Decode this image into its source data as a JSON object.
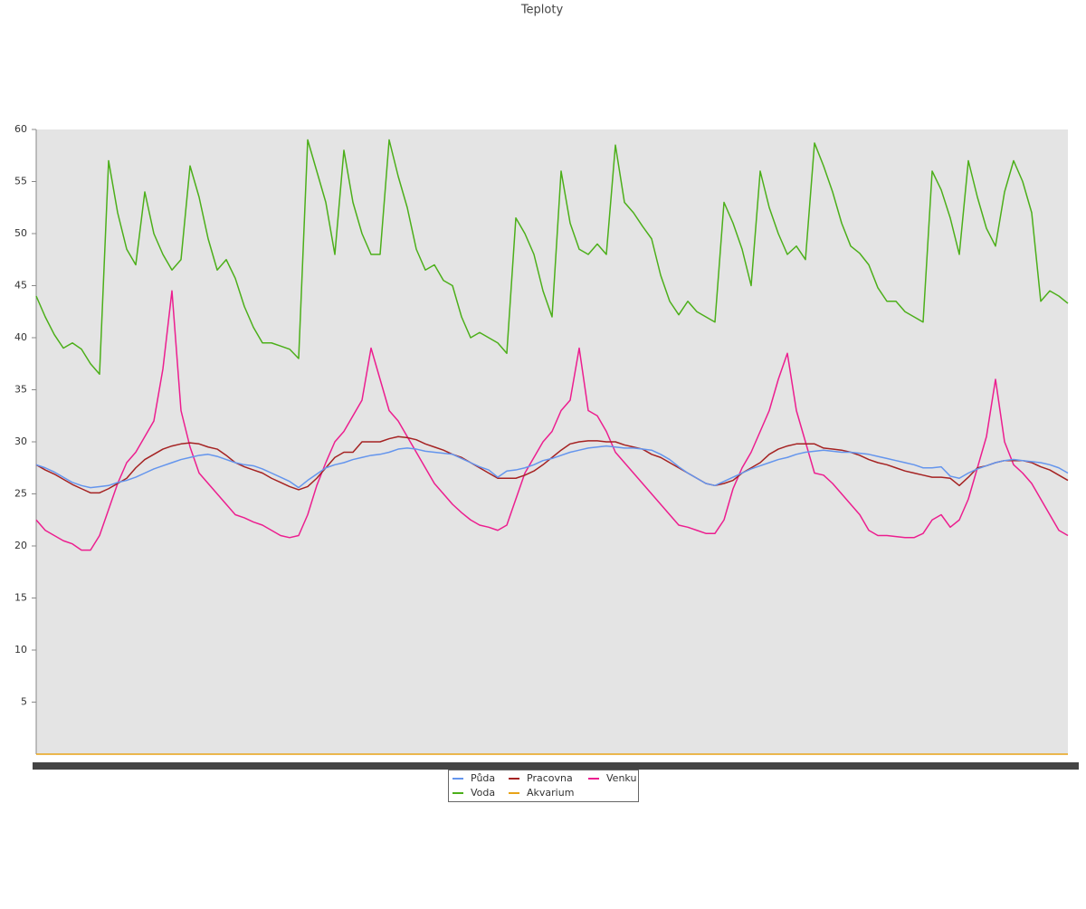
{
  "chart_data": {
    "type": "line",
    "title": "Teploty",
    "ylim": [
      0,
      60
    ],
    "yticks": [
      5,
      10,
      15,
      20,
      25,
      30,
      35,
      40,
      45,
      50,
      55,
      60
    ],
    "series": [
      {
        "name": "Půda",
        "color": "#6495ed",
        "values": [
          27.8,
          27.5,
          27.1,
          26.6,
          26.1,
          25.8,
          25.6,
          25.7,
          25.8,
          26.1,
          26.3,
          26.6,
          27.0,
          27.4,
          27.7,
          28.0,
          28.3,
          28.5,
          28.7,
          28.8,
          28.6,
          28.3,
          28.0,
          27.8,
          27.7,
          27.4,
          27.0,
          26.6,
          26.2,
          25.6,
          26.3,
          26.9,
          27.5,
          27.8,
          28.0,
          28.3,
          28.5,
          28.7,
          28.8,
          29.0,
          29.3,
          29.4,
          29.3,
          29.1,
          29.0,
          28.9,
          28.8,
          28.4,
          28.0,
          27.6,
          27.3,
          26.6,
          27.2,
          27.3,
          27.5,
          27.8,
          28.2,
          28.4,
          28.7,
          29.0,
          29.2,
          29.4,
          29.5,
          29.6,
          29.5,
          29.4,
          29.4,
          29.3,
          29.2,
          28.8,
          28.3,
          27.6,
          27.0,
          26.5,
          26.0,
          25.8,
          26.2,
          26.6,
          27.0,
          27.4,
          27.7,
          28.0,
          28.3,
          28.5,
          28.8,
          29.0,
          29.1,
          29.2,
          29.1,
          29.0,
          29.0,
          28.9,
          28.8,
          28.6,
          28.4,
          28.2,
          28.0,
          27.8,
          27.5,
          27.5,
          27.6,
          26.7,
          26.5,
          27.0,
          27.4,
          27.7,
          28.0,
          28.2,
          28.3,
          28.2,
          28.1,
          28.0,
          27.8,
          27.5,
          27.0
        ]
      },
      {
        "name": "Voda",
        "color": "#4caf1a",
        "values": [
          44.0,
          42.0,
          40.3,
          39.0,
          39.5,
          38.9,
          37.5,
          36.5,
          57.0,
          52.0,
          48.5,
          47.0,
          54.0,
          50.0,
          48.0,
          46.5,
          47.5,
          56.5,
          53.5,
          49.5,
          46.5,
          47.5,
          45.7,
          43.0,
          41.0,
          39.5,
          39.5,
          39.2,
          38.9,
          38.0,
          59.0,
          56.0,
          53.0,
          48.0,
          58.0,
          53.0,
          50.0,
          48.0,
          48.0,
          59.0,
          55.5,
          52.5,
          48.5,
          46.5,
          47.0,
          45.5,
          45.0,
          42.0,
          40.0,
          40.5,
          40.0,
          39.5,
          38.5,
          51.5,
          50.0,
          48.0,
          44.5,
          42.0,
          56.0,
          51.0,
          48.5,
          48.0,
          49.0,
          48.0,
          58.5,
          53.0,
          52.0,
          50.7,
          49.5,
          46.0,
          43.5,
          42.2,
          43.5,
          42.5,
          42.0,
          41.5,
          53.0,
          51.0,
          48.5,
          45.0,
          56.0,
          52.5,
          50.0,
          48.0,
          48.8,
          47.5,
          58.7,
          56.5,
          54.0,
          51.0,
          48.8,
          48.1,
          47.0,
          44.8,
          43.5,
          43.5,
          42.5,
          42.0,
          41.5,
          56.0,
          54.2,
          51.5,
          48.0,
          57.0,
          53.5,
          50.5,
          48.8,
          54.0,
          57.0,
          55.0,
          52.0,
          43.5,
          44.5,
          44.0,
          43.3
        ]
      },
      {
        "name": "Pracovna",
        "color": "#a52222",
        "values": [
          27.8,
          27.3,
          26.9,
          26.4,
          25.9,
          25.5,
          25.1,
          25.1,
          25.5,
          26.0,
          26.5,
          27.5,
          28.3,
          28.8,
          29.3,
          29.6,
          29.8,
          29.9,
          29.8,
          29.5,
          29.3,
          28.7,
          28.0,
          27.6,
          27.3,
          27.0,
          26.5,
          26.1,
          25.7,
          25.4,
          25.7,
          26.5,
          27.5,
          28.5,
          29.0,
          29.0,
          30.0,
          30.0,
          30.0,
          30.3,
          30.5,
          30.4,
          30.2,
          29.8,
          29.5,
          29.2,
          28.8,
          28.5,
          28.0,
          27.5,
          27.0,
          26.5,
          26.5,
          26.5,
          26.8,
          27.2,
          27.8,
          28.5,
          29.2,
          29.8,
          30.0,
          30.1,
          30.1,
          30.0,
          30.0,
          29.7,
          29.5,
          29.3,
          28.8,
          28.5,
          28.0,
          27.5,
          27.0,
          26.5,
          26.0,
          25.8,
          26.0,
          26.3,
          27.0,
          27.5,
          28.0,
          28.8,
          29.3,
          29.6,
          29.8,
          29.8,
          29.8,
          29.4,
          29.3,
          29.2,
          29.0,
          28.7,
          28.3,
          28.0,
          27.8,
          27.5,
          27.2,
          27.0,
          26.8,
          26.6,
          26.6,
          26.5,
          25.8,
          26.6,
          27.5,
          27.7,
          28.0,
          28.2,
          28.2,
          28.2,
          28.0,
          27.6,
          27.3,
          26.8,
          26.3
        ]
      },
      {
        "name": "Akvarium",
        "color": "#e8a317",
        "values": [
          0,
          0,
          0,
          0,
          0,
          0,
          0,
          0,
          0,
          0,
          0,
          0,
          0,
          0,
          0,
          0,
          0,
          0,
          0,
          0,
          0,
          0,
          0,
          0,
          0,
          0,
          0,
          0,
          0,
          0,
          0,
          0,
          0,
          0,
          0,
          0,
          0,
          0,
          0,
          0,
          0,
          0,
          0,
          0,
          0,
          0,
          0,
          0,
          0,
          0,
          0,
          0,
          0,
          0,
          0,
          0,
          0,
          0,
          0,
          0,
          0,
          0,
          0,
          0,
          0,
          0,
          0,
          0,
          0,
          0,
          0,
          0,
          0,
          0,
          0,
          0,
          0,
          0,
          0,
          0,
          0,
          0,
          0,
          0,
          0,
          0,
          0,
          0,
          0,
          0,
          0,
          0,
          0,
          0,
          0,
          0,
          0,
          0,
          0,
          0,
          0,
          0,
          0,
          0,
          0,
          0,
          0,
          0,
          0,
          0,
          0,
          0,
          0,
          0,
          0
        ]
      },
      {
        "name": "Venku",
        "color": "#ec1e8f",
        "values": [
          22.5,
          21.5,
          21.0,
          20.5,
          20.2,
          19.6,
          19.6,
          21.0,
          23.5,
          26.0,
          28.0,
          29.0,
          30.5,
          32.0,
          37.0,
          44.5,
          33.0,
          29.5,
          27.0,
          26.0,
          25.0,
          24.0,
          23.0,
          22.7,
          22.3,
          22.0,
          21.5,
          21.0,
          20.8,
          21.0,
          23.0,
          25.8,
          28.0,
          30.0,
          31.0,
          32.5,
          34.0,
          39.0,
          36.0,
          33.0,
          32.0,
          30.5,
          29.0,
          27.5,
          26.0,
          25.0,
          24.0,
          23.2,
          22.5,
          22.0,
          21.8,
          21.5,
          22.0,
          24.5,
          27.0,
          28.5,
          30.0,
          31.0,
          33.0,
          34.0,
          39.0,
          33.0,
          32.5,
          31.0,
          29.0,
          28.0,
          27.0,
          26.0,
          25.0,
          24.0,
          23.0,
          22.0,
          21.8,
          21.5,
          21.2,
          21.2,
          22.5,
          25.5,
          27.5,
          29.0,
          31.0,
          33.0,
          36.0,
          38.5,
          33.0,
          30.0,
          27.0,
          26.8,
          26.0,
          25.0,
          24.0,
          23.0,
          21.5,
          21.0,
          21.0,
          20.9,
          20.8,
          20.8,
          21.2,
          22.5,
          23.0,
          21.8,
          22.5,
          24.5,
          27.5,
          30.5,
          36.0,
          30.0,
          27.8,
          27.0,
          26.0,
          24.5,
          23.0,
          21.5,
          21.0
        ]
      }
    ]
  }
}
